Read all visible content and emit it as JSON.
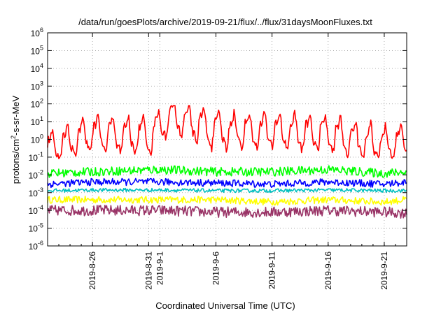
{
  "chart_data": {
    "type": "line",
    "title": "/data/run/goesPlots/archive/2019-09-21/flux/../flux/31daysMoonFluxes.txt",
    "xlabel": "Coordinated Universal Time (UTC)",
    "ylabel": {
      "prefix": "protons/cm",
      "sup": "2",
      "suffix": "-s-sr-MeV"
    },
    "yscale": "log",
    "ylim": [
      1e-06,
      1000000.0
    ],
    "xlim": [
      "2019-08-22",
      "2019-09-23"
    ],
    "grid": true,
    "y_ticks": [
      {
        "value": 1e-06,
        "base": "10",
        "exp": "-6"
      },
      {
        "value": 1e-05,
        "base": "10",
        "exp": "-5"
      },
      {
        "value": 0.0001,
        "base": "10",
        "exp": "-4"
      },
      {
        "value": 0.001,
        "base": "10",
        "exp": "-3"
      },
      {
        "value": 0.01,
        "base": "10",
        "exp": "-2"
      },
      {
        "value": 0.1,
        "base": "10",
        "exp": "-1"
      },
      {
        "value": 1.0,
        "base": "10",
        "exp": "0"
      },
      {
        "value": 10.0,
        "base": "10",
        "exp": "1"
      },
      {
        "value": 100.0,
        "base": "10",
        "exp": "2"
      },
      {
        "value": 1000.0,
        "base": "10",
        "exp": "3"
      },
      {
        "value": 10000.0,
        "base": "10",
        "exp": "4"
      },
      {
        "value": 100000.0,
        "base": "10",
        "exp": "5"
      },
      {
        "value": 1000000.0,
        "base": "10",
        "exp": "6"
      }
    ],
    "x_ticks": [
      "2019-8-26",
      "2019-8-31",
      "2019-9-1",
      "2019-9-6",
      "2019-9-11",
      "2019-9-16",
      "2019-9-21"
    ],
    "x_tick_dates": [
      "2019-08-26",
      "2019-08-31",
      "2019-09-01",
      "2019-09-06",
      "2019-09-11",
      "2019-09-16",
      "2019-09-21"
    ],
    "series": [
      {
        "color": "#ff0000",
        "low": 0.08,
        "high": 10,
        "period_days": 1.35,
        "noise": 0.25,
        "x": [
          "2019-08-22",
          "2019-08-26",
          "2019-08-31",
          "2019-09-02",
          "2019-09-06",
          "2019-09-11",
          "2019-09-16",
          "2019-09-21",
          "2019-09-23"
        ],
        "y": [
          0.3,
          2,
          1.5,
          20,
          3,
          3,
          2,
          0.5,
          1
        ]
      },
      {
        "color": "#00ff00",
        "low": 0.006,
        "high": 0.05,
        "noise": 0.25,
        "x": [
          "2019-08-22",
          "2019-08-26",
          "2019-09-01",
          "2019-09-06",
          "2019-09-11",
          "2019-09-16",
          "2019-09-21",
          "2019-09-23"
        ],
        "y": [
          0.012,
          0.015,
          0.02,
          0.015,
          0.015,
          0.02,
          0.012,
          0.015
        ]
      },
      {
        "color": "#0000ff",
        "low": 0.0015,
        "high": 0.008,
        "noise": 0.2,
        "x": [
          "2019-08-22",
          "2019-08-26",
          "2019-09-01",
          "2019-09-06",
          "2019-09-11",
          "2019-09-16",
          "2019-09-21",
          "2019-09-23"
        ],
        "y": [
          0.003,
          0.004,
          0.004,
          0.0035,
          0.003,
          0.004,
          0.003,
          0.004
        ]
      },
      {
        "color": "#00bfbf",
        "low": 0.001,
        "high": 0.002,
        "noise": 0.1,
        "x": [
          "2019-08-22",
          "2019-08-26",
          "2019-09-01",
          "2019-09-06",
          "2019-09-11",
          "2019-09-16",
          "2019-09-21",
          "2019-09-23"
        ],
        "y": [
          0.0013,
          0.0014,
          0.0014,
          0.0013,
          0.0013,
          0.0014,
          0.0013,
          0.0013
        ]
      },
      {
        "color": "#ffff00",
        "low": 0.0002,
        "high": 0.0008,
        "noise": 0.2,
        "x": [
          "2019-08-22",
          "2019-08-26",
          "2019-09-01",
          "2019-09-06",
          "2019-09-11",
          "2019-09-16",
          "2019-09-21",
          "2019-09-23"
        ],
        "y": [
          0.0004,
          0.0004,
          0.0004,
          0.0004,
          0.0003,
          0.0004,
          0.0003,
          0.0004
        ]
      },
      {
        "color": "#993366",
        "low": 3e-05,
        "high": 0.0003,
        "noise": 0.3,
        "x": [
          "2019-08-22",
          "2019-08-26",
          "2019-09-01",
          "2019-09-06",
          "2019-09-11",
          "2019-09-16",
          "2019-09-21",
          "2019-09-23"
        ],
        "y": [
          0.0001,
          0.0001,
          0.0001,
          8e-05,
          8e-05,
          0.0001,
          8e-05,
          7e-05
        ]
      }
    ]
  }
}
